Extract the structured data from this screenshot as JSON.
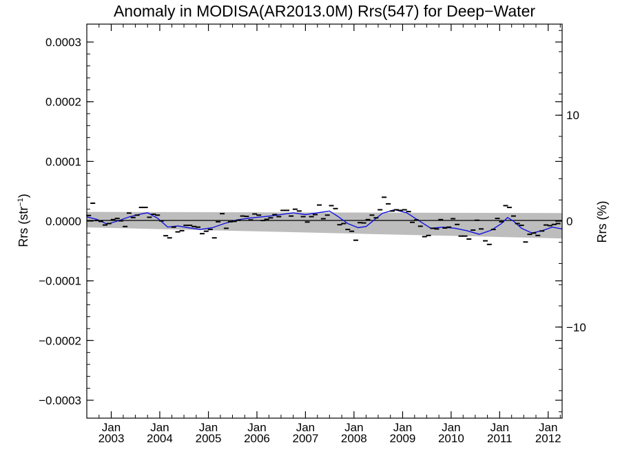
{
  "chart_data": {
    "type": "scatter",
    "title": "Anomaly in MODISA(AR2013.0M) Rrs(547) for Deep−Water",
    "ylabel_left": {
      "base": "Rrs (str",
      "sup": "−1",
      "tail": ")"
    },
    "ylabel_right": "Rrs (%)",
    "xlabel": "",
    "x_range": [
      "2002-07-01",
      "2012-04-15"
    ],
    "y_range": [
      -0.00033,
      0.00033
    ],
    "y_right_range": [
      -18.6,
      18.6
    ],
    "left_ticks": [
      {
        "value": 0.0003,
        "label": "0.0003"
      },
      {
        "value": 0.0002,
        "label": "0.0002"
      },
      {
        "value": 0.0001,
        "label": "0.0001"
      },
      {
        "value": 0.0,
        "label": "0.0000"
      },
      {
        "value": -0.0001,
        "label": "−0.0001"
      },
      {
        "value": -0.0002,
        "label": "−0.0002"
      },
      {
        "value": -0.0003,
        "label": "−0.0003"
      }
    ],
    "right_ticks": [
      {
        "value": 10,
        "label": "10"
      },
      {
        "value": 0,
        "label": "0"
      },
      {
        "value": -10,
        "label": "−10"
      }
    ],
    "x_ticks": [
      {
        "date": "2003-01-01",
        "month": "Jan",
        "year": "2003"
      },
      {
        "date": "2004-01-01",
        "month": "Jan",
        "year": "2004"
      },
      {
        "date": "2005-01-01",
        "month": "Jan",
        "year": "2005"
      },
      {
        "date": "2006-01-01",
        "month": "Jan",
        "year": "2006"
      },
      {
        "date": "2007-01-01",
        "month": "Jan",
        "year": "2007"
      },
      {
        "date": "2008-01-01",
        "month": "Jan",
        "year": "2008"
      },
      {
        "date": "2009-01-01",
        "month": "Jan",
        "year": "2009"
      },
      {
        "date": "2010-01-01",
        "month": "Jan",
        "year": "2010"
      },
      {
        "date": "2011-01-01",
        "month": "Jan",
        "year": "2011"
      },
      {
        "date": "2012-01-01",
        "month": "Jan",
        "year": "2012"
      }
    ],
    "grid": false,
    "colors": {
      "points": "#000000",
      "running_mean": "#1010e0",
      "band": "#bdbdbd",
      "zero_line": "#000000"
    },
    "band": {
      "x": [
        "2002-07-01",
        "2012-04-15"
      ],
      "upper": [
        1.55e-05,
        1.35e-05
      ],
      "lower": [
        -1.05e-05,
        -2.9e-05
      ]
    },
    "points": [
      {
        "x": "2002-07-15",
        "y": 9.5e-06
      },
      {
        "x": "2002-08-15",
        "y": 3e-05
      },
      {
        "x": "2002-09-15",
        "y": 1e-06
      },
      {
        "x": "2002-10-15",
        "y": -5e-07
      },
      {
        "x": "2002-11-15",
        "y": -6.5e-06
      },
      {
        "x": "2002-12-15",
        "y": -4e-06
      },
      {
        "x": "2003-01-15",
        "y": 2.5e-06
      },
      {
        "x": "2003-02-15",
        "y": 4.5e-06
      },
      {
        "x": "2003-03-15",
        "y": 5e-07
      },
      {
        "x": "2003-04-15",
        "y": -9e-06
      },
      {
        "x": "2003-05-15",
        "y": 1.35e-05
      },
      {
        "x": "2003-06-15",
        "y": 6e-06
      },
      {
        "x": "2003-07-15",
        "y": 1e-05
      },
      {
        "x": "2003-08-15",
        "y": 2.3e-05
      },
      {
        "x": "2003-09-15",
        "y": 2.3e-05
      },
      {
        "x": "2003-10-15",
        "y": 6.5e-06
      },
      {
        "x": "2003-11-15",
        "y": 1.15e-05
      },
      {
        "x": "2003-12-15",
        "y": 1e-05
      },
      {
        "x": "2004-01-15",
        "y": 5e-07
      },
      {
        "x": "2004-02-15",
        "y": -2.45e-05
      },
      {
        "x": "2004-03-15",
        "y": -2.8e-05
      },
      {
        "x": "2004-04-15",
        "y": -1e-05
      },
      {
        "x": "2004-05-15",
        "y": -1.8e-05
      },
      {
        "x": "2004-06-15",
        "y": -1.6e-05
      },
      {
        "x": "2004-07-15",
        "y": -7e-06
      },
      {
        "x": "2004-08-15",
        "y": -7e-06
      },
      {
        "x": "2004-09-15",
        "y": -9e-06
      },
      {
        "x": "2004-10-15",
        "y": -1e-05
      },
      {
        "x": "2004-11-15",
        "y": -2.1e-05
      },
      {
        "x": "2004-12-15",
        "y": -1.7e-05
      },
      {
        "x": "2005-01-15",
        "y": -1.4e-05
      },
      {
        "x": "2005-02-15",
        "y": -2.8e-05
      },
      {
        "x": "2005-03-15",
        "y": -1e-06
      },
      {
        "x": "2005-04-15",
        "y": 1.25e-05
      },
      {
        "x": "2005-05-15",
        "y": -1.2e-05
      },
      {
        "x": "2005-06-15",
        "y": -1e-06
      },
      {
        "x": "2005-07-15",
        "y": -5e-07
      },
      {
        "x": "2005-08-15",
        "y": 1.5e-06
      },
      {
        "x": "2005-09-15",
        "y": 8.5e-06
      },
      {
        "x": "2005-10-15",
        "y": 8e-06
      },
      {
        "x": "2005-11-15",
        "y": 2e-06
      },
      {
        "x": "2005-12-15",
        "y": 1.2e-05
      },
      {
        "x": "2006-01-15",
        "y": 1e-05
      },
      {
        "x": "2006-02-15",
        "y": 1e-06
      },
      {
        "x": "2006-03-15",
        "y": 3e-06
      },
      {
        "x": "2006-04-15",
        "y": 5.5e-06
      },
      {
        "x": "2006-05-15",
        "y": 1.1e-05
      },
      {
        "x": "2006-06-15",
        "y": 7.5e-06
      },
      {
        "x": "2006-07-15",
        "y": 1.8e-05
      },
      {
        "x": "2006-08-15",
        "y": 1.8e-05
      },
      {
        "x": "2006-09-15",
        "y": 8.5e-06
      },
      {
        "x": "2006-10-15",
        "y": 2e-05
      },
      {
        "x": "2006-11-15",
        "y": 1.7e-05
      },
      {
        "x": "2006-12-15",
        "y": 7.5e-06
      },
      {
        "x": "2007-01-15",
        "y": -1.5e-06
      },
      {
        "x": "2007-02-15",
        "y": 7.5e-06
      },
      {
        "x": "2007-03-15",
        "y": 1.1e-05
      },
      {
        "x": "2007-04-15",
        "y": 2.7e-05
      },
      {
        "x": "2007-05-15",
        "y": 4e-06
      },
      {
        "x": "2007-06-15",
        "y": 1e-05
      },
      {
        "x": "2007-07-15",
        "y": 2.6e-05
      },
      {
        "x": "2007-08-15",
        "y": 2.1e-05
      },
      {
        "x": "2007-09-15",
        "y": -6e-06
      },
      {
        "x": "2007-10-15",
        "y": -4e-06
      },
      {
        "x": "2007-11-15",
        "y": -1.4e-05
      },
      {
        "x": "2007-12-15",
        "y": -1.7e-05
      },
      {
        "x": "2008-01-15",
        "y": -3.2e-05
      },
      {
        "x": "2008-02-15",
        "y": -2.5e-06
      },
      {
        "x": "2008-03-15",
        "y": -3e-06
      },
      {
        "x": "2008-04-15",
        "y": 2.5e-06
      },
      {
        "x": "2008-05-15",
        "y": 1e-05
      },
      {
        "x": "2008-06-15",
        "y": 5.5e-06
      },
      {
        "x": "2008-07-15",
        "y": 1.9e-05
      },
      {
        "x": "2008-08-15",
        "y": 4e-05
      },
      {
        "x": "2008-09-15",
        "y": 2.9e-05
      },
      {
        "x": "2008-10-15",
        "y": 1.7e-05
      },
      {
        "x": "2008-11-15",
        "y": 1.9e-05
      },
      {
        "x": "2008-12-15",
        "y": 1.8e-05
      },
      {
        "x": "2009-01-15",
        "y": 1.9e-05
      },
      {
        "x": "2009-02-15",
        "y": 1.6e-05
      },
      {
        "x": "2009-03-15",
        "y": -2e-06
      },
      {
        "x": "2009-04-15",
        "y": 2e-06
      },
      {
        "x": "2009-05-15",
        "y": -8.5e-06
      },
      {
        "x": "2009-06-15",
        "y": -2.6e-05
      },
      {
        "x": "2009-07-15",
        "y": -2.4e-05
      },
      {
        "x": "2009-08-15",
        "y": -1.2e-05
      },
      {
        "x": "2009-09-15",
        "y": -1.3e-05
      },
      {
        "x": "2009-10-15",
        "y": 2.5e-06
      },
      {
        "x": "2009-11-15",
        "y": -1.15e-05
      },
      {
        "x": "2009-12-15",
        "y": -1e-05
      },
      {
        "x": "2010-01-15",
        "y": 4e-06
      },
      {
        "x": "2010-02-15",
        "y": -5.5e-06
      },
      {
        "x": "2010-03-15",
        "y": -2.5e-05
      },
      {
        "x": "2010-04-15",
        "y": -2.5e-05
      },
      {
        "x": "2010-05-15",
        "y": -3e-05
      },
      {
        "x": "2010-06-15",
        "y": -1.5e-05
      },
      {
        "x": "2010-07-15",
        "y": 1.5e-06
      },
      {
        "x": "2010-08-15",
        "y": -1.3e-05
      },
      {
        "x": "2010-09-15",
        "y": -3.3e-05
      },
      {
        "x": "2010-10-15",
        "y": -3.9e-05
      },
      {
        "x": "2010-11-15",
        "y": -1.4e-05
      },
      {
        "x": "2010-12-15",
        "y": 4.5e-06
      },
      {
        "x": "2011-01-15",
        "y": -1e-06
      },
      {
        "x": "2011-02-15",
        "y": 2.6e-05
      },
      {
        "x": "2011-03-15",
        "y": 2.3e-05
      },
      {
        "x": "2011-04-15",
        "y": 8.5e-06
      },
      {
        "x": "2011-05-15",
        "y": -4e-06
      },
      {
        "x": "2011-06-15",
        "y": -7e-06
      },
      {
        "x": "2011-07-15",
        "y": -3.5e-05
      },
      {
        "x": "2011-08-15",
        "y": -2.2e-05
      },
      {
        "x": "2011-09-15",
        "y": -2e-05
      },
      {
        "x": "2011-10-15",
        "y": -2.4e-05
      },
      {
        "x": "2011-11-15",
        "y": -1.65e-05
      },
      {
        "x": "2011-12-15",
        "y": -6.5e-06
      },
      {
        "x": "2012-01-15",
        "y": -7.5e-06
      },
      {
        "x": "2012-02-15",
        "y": -5.5e-06
      },
      {
        "x": "2012-03-15",
        "y": -4e-06
      }
    ],
    "running_mean": [
      {
        "x": "2002-07-01",
        "y": 7e-06
      },
      {
        "x": "2002-09-15",
        "y": 3e-06
      },
      {
        "x": "2002-12-01",
        "y": -5e-06
      },
      {
        "x": "2003-02-15",
        "y": 0.0
      },
      {
        "x": "2003-05-15",
        "y": 7e-06
      },
      {
        "x": "2003-08-15",
        "y": 1.2e-05
      },
      {
        "x": "2003-10-01",
        "y": 1.4e-05
      },
      {
        "x": "2003-12-15",
        "y": 5e-06
      },
      {
        "x": "2004-03-01",
        "y": -1e-05
      },
      {
        "x": "2004-05-15",
        "y": -8e-06
      },
      {
        "x": "2004-08-01",
        "y": -1.1e-05
      },
      {
        "x": "2004-11-01",
        "y": -1.4e-05
      },
      {
        "x": "2005-02-01",
        "y": -1.1e-05
      },
      {
        "x": "2005-05-01",
        "y": -4e-06
      },
      {
        "x": "2005-08-01",
        "y": 2e-06
      },
      {
        "x": "2005-11-01",
        "y": 5e-06
      },
      {
        "x": "2006-02-01",
        "y": 7e-06
      },
      {
        "x": "2006-05-01",
        "y": 9e-06
      },
      {
        "x": "2006-08-01",
        "y": 1.2e-05
      },
      {
        "x": "2006-10-01",
        "y": 1.4e-05
      },
      {
        "x": "2007-01-01",
        "y": 1.1e-05
      },
      {
        "x": "2007-04-01",
        "y": 1.4e-05
      },
      {
        "x": "2007-07-01",
        "y": 1.7e-05
      },
      {
        "x": "2007-09-01",
        "y": 8e-06
      },
      {
        "x": "2007-11-15",
        "y": -4e-06
      },
      {
        "x": "2008-02-01",
        "y": -1.1e-05
      },
      {
        "x": "2008-04-01",
        "y": -9e-06
      },
      {
        "x": "2008-06-01",
        "y": 2e-06
      },
      {
        "x": "2008-08-01",
        "y": 1.3e-05
      },
      {
        "x": "2008-11-01",
        "y": 1.9e-05
      },
      {
        "x": "2009-02-01",
        "y": 1.4e-05
      },
      {
        "x": "2009-05-01",
        "y": 1e-06
      },
      {
        "x": "2009-08-01",
        "y": -1.2e-05
      },
      {
        "x": "2009-11-01",
        "y": -1e-05
      },
      {
        "x": "2010-02-01",
        "y": -1.2e-05
      },
      {
        "x": "2010-05-01",
        "y": -1.6e-05
      },
      {
        "x": "2010-08-01",
        "y": -2.2e-05
      },
      {
        "x": "2010-11-01",
        "y": -1.5e-05
      },
      {
        "x": "2011-01-15",
        "y": -4e-06
      },
      {
        "x": "2011-03-01",
        "y": 6e-06
      },
      {
        "x": "2011-04-15",
        "y": 0.0
      },
      {
        "x": "2011-06-15",
        "y": -1.2e-05
      },
      {
        "x": "2011-09-01",
        "y": -2e-05
      },
      {
        "x": "2011-11-15",
        "y": -1.6e-05
      },
      {
        "x": "2012-02-01",
        "y": -1e-05
      },
      {
        "x": "2012-04-15",
        "y": -1.3e-05
      }
    ]
  }
}
